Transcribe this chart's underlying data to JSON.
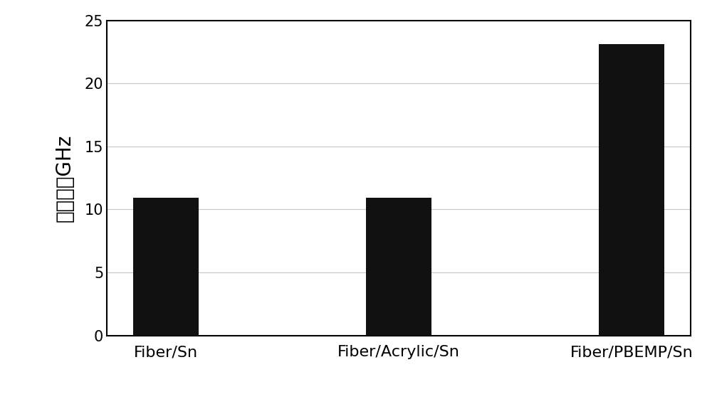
{
  "categories": [
    "Fiber/Sn",
    "Fiber/Acrylic/Sn",
    "Fiber/PBEMP/Sn"
  ],
  "values": [
    10.9,
    10.9,
    23.1
  ],
  "bar_color": "#111111",
  "ylabel": "光谱位移GHz",
  "ylim": [
    0,
    25
  ],
  "yticks": [
    0,
    5,
    10,
    15,
    20,
    25
  ],
  "bar_width": 0.28,
  "background_color": "#ffffff",
  "plot_bg_color": "#ffffff",
  "grid_color": "#c8c8c8",
  "ylabel_fontsize": 20,
  "xtick_fontsize": 16,
  "ytick_fontsize": 15,
  "spine_linewidth": 1.5
}
